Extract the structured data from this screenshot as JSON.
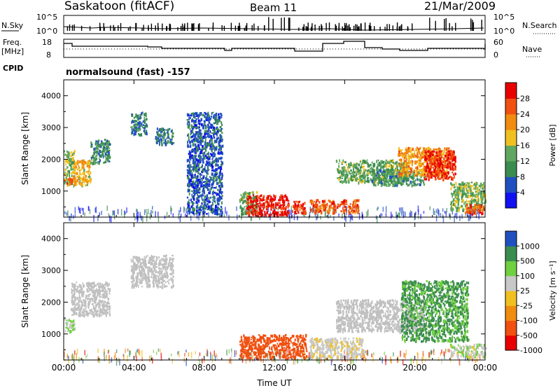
{
  "header": {
    "station": "Saskatoon (fitACF)",
    "beam": "Beam 11",
    "date": "21/Mar/2009"
  },
  "noise_panel": {
    "left_label": "N.Sky",
    "left_ticks": [
      "10^5",
      "10^0"
    ],
    "right_ticks": [
      "10^5",
      "10^0"
    ],
    "right_label": "N.Search"
  },
  "freq_panel": {
    "left_label_1": "Freq.",
    "left_label_2": "[MHz]",
    "left_ticks": [
      "18",
      "8"
    ],
    "right_ticks": [
      "60",
      "0"
    ],
    "right_label": "Nave"
  },
  "cpid": {
    "label": "CPID",
    "value": "normalsound (fast) -157"
  },
  "colors": {
    "power_scale": [
      "#1010f0",
      "#2050c0",
      "#3c8c50",
      "#60a860",
      "#f0c020",
      "#f08c10",
      "#f05010",
      "#e80000"
    ],
    "velocity_scale": [
      "#e80000",
      "#f05010",
      "#f08c10",
      "#f0c020",
      "#c8c8c8",
      "#70d040",
      "#3c8c50",
      "#2050c0"
    ],
    "ground_scatter": "#c0c0c0"
  },
  "chart_data": [
    {
      "type": "heatmap",
      "title": "Power",
      "ylabel": "Slant Range [km]",
      "xlabel": "",
      "x_ticks": [
        "00:00",
        "04:00",
        "08:00",
        "12:00",
        "16:00",
        "20:00",
        "00:00"
      ],
      "y_ticks": [
        1000,
        2000,
        3000,
        4000
      ],
      "xlim_hours": [
        0,
        24
      ],
      "ylim_km": [
        180,
        4500
      ],
      "colorbar": {
        "label": "Power [dB]",
        "ticks": [
          "28",
          "24",
          "20",
          "16",
          "12",
          "8",
          "4"
        ],
        "range": [
          0,
          30
        ]
      },
      "regions": [
        {
          "t0": 0.0,
          "t1": 0.6,
          "r0": 1200,
          "r1": 2300,
          "value": 14
        },
        {
          "t0": 0.0,
          "t1": 0.5,
          "r0": 1250,
          "r1": 1450,
          "value": 26
        },
        {
          "t0": 0.5,
          "t1": 1.5,
          "r0": 1200,
          "r1": 2000,
          "value": 18
        },
        {
          "t0": 1.5,
          "t1": 2.6,
          "r0": 1900,
          "r1": 2650,
          "value": 10
        },
        {
          "t0": 3.8,
          "t1": 4.7,
          "r0": 2800,
          "r1": 3500,
          "value": 8
        },
        {
          "t0": 5.2,
          "t1": 6.2,
          "r0": 2500,
          "r1": 3000,
          "value": 8
        },
        {
          "t0": 7.0,
          "t1": 9.0,
          "r0": 300,
          "r1": 3500,
          "value": 6
        },
        {
          "t0": 10.0,
          "t1": 11.0,
          "r0": 300,
          "r1": 1000,
          "value": 12
        },
        {
          "t0": 10.4,
          "t1": 12.8,
          "r0": 250,
          "r1": 900,
          "value": 28
        },
        {
          "t0": 13.0,
          "t1": 13.8,
          "r0": 300,
          "r1": 700,
          "value": 27
        },
        {
          "t0": 14.0,
          "t1": 16.8,
          "r0": 350,
          "r1": 750,
          "value": 24
        },
        {
          "t0": 15.5,
          "t1": 19.5,
          "r0": 1300,
          "r1": 2000,
          "value": 12
        },
        {
          "t0": 17.5,
          "t1": 20.5,
          "r0": 1200,
          "r1": 1700,
          "value": 10
        },
        {
          "t0": 19.0,
          "t1": 22.0,
          "r0": 1500,
          "r1": 2400,
          "value": 20
        },
        {
          "t0": 20.5,
          "t1": 22.3,
          "r0": 1400,
          "r1": 2300,
          "value": 27
        },
        {
          "t0": 22.0,
          "t1": 24.0,
          "r0": 400,
          "r1": 1300,
          "value": 14
        },
        {
          "t0": 22.8,
          "t1": 23.9,
          "r0": 300,
          "r1": 600,
          "value": 24
        }
      ]
    },
    {
      "type": "heatmap",
      "title": "Velocity",
      "ylabel": "Slant Range [km]",
      "xlabel": "Time UT",
      "x_ticks": [
        "00:00",
        "04:00",
        "08:00",
        "12:00",
        "16:00",
        "20:00",
        "00:00"
      ],
      "y_ticks": [
        1000,
        2000,
        3000,
        4000
      ],
      "xlim_hours": [
        0,
        24
      ],
      "ylim_km": [
        180,
        4500
      ],
      "colorbar": {
        "label": "Velocity [m s⁻¹]",
        "ticks": [
          "1000",
          "500",
          "100",
          "25",
          "-25",
          "-100",
          "-500",
          "-1000"
        ]
      },
      "regions": [
        {
          "t0": 0.0,
          "t1": 0.6,
          "r0": 1100,
          "r1": 1500,
          "value": 100,
          "scatter": "ionospheric"
        },
        {
          "t0": 0.4,
          "t1": 2.6,
          "r0": 1600,
          "r1": 2650,
          "value": 0,
          "scatter": "ground"
        },
        {
          "t0": 3.8,
          "t1": 6.2,
          "r0": 2500,
          "r1": 3500,
          "value": 0,
          "scatter": "ground"
        },
        {
          "t0": 10.0,
          "t1": 13.8,
          "r0": 250,
          "r1": 1000,
          "value": -300,
          "scatter": "ionospheric"
        },
        {
          "t0": 14.0,
          "t1": 17.0,
          "r0": 250,
          "r1": 900,
          "value": 50,
          "scatter": "ionospheric"
        },
        {
          "t0": 15.5,
          "t1": 20.5,
          "r0": 1100,
          "r1": 2100,
          "value": 0,
          "scatter": "ground"
        },
        {
          "t0": 19.2,
          "t1": 23.0,
          "r0": 800,
          "r1": 2700,
          "value": 600,
          "scatter": "ionospheric"
        },
        {
          "t0": 22.0,
          "t1": 24.0,
          "r0": 300,
          "r1": 700,
          "value": 80,
          "scatter": "ionospheric"
        }
      ]
    }
  ]
}
